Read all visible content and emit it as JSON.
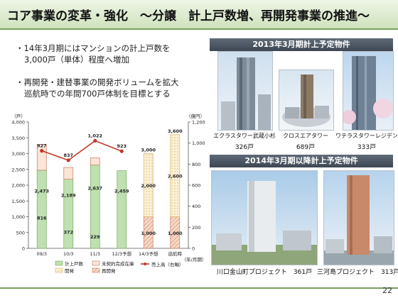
{
  "title": "コア事業の変革・強化　～分譲　計上戸数増、再開発事業の推進～",
  "bullets": [
    {
      "mark": "・",
      "lines": [
        "14年3月期にはマンションの計上戸数を",
        "3,000戸（単体）程度へ増加"
      ]
    },
    {
      "mark": "・",
      "lines": [
        "再開発・建替事業の開発ボリュームを拡大",
        "巡航時での年間700戸体制を目標とする"
      ]
    }
  ],
  "section_2013": {
    "header": "2013年3月期計上予定物件",
    "items": [
      {
        "name": "エクラスタワー武蔵小杉",
        "units": "326戸"
      },
      {
        "name": "クロスエアタワー",
        "units": "689戸"
      },
      {
        "name": "ワテラスタワーレジデンス",
        "units": "333戸"
      }
    ]
  },
  "section_2014": {
    "header": "2014年3月期以降計上予定物件",
    "items": [
      {
        "caption": "川口金山町プロジェクト　361戸"
      },
      {
        "caption": "三河島プロジェクト　313戸"
      }
    ]
  },
  "page_number": "22",
  "chart_data": {
    "type": "bar",
    "categories": [
      "09/3",
      "10/3",
      "11/3",
      "12/3予想",
      "14/3予想",
      "巡航時"
    ],
    "left_axis": {
      "label": "（戸）",
      "ticks": [
        "0",
        "500",
        "1,000",
        "1,500",
        "2,000",
        "2,500",
        "3,000",
        "3,500",
        "4,000"
      ],
      "ylim": [
        0,
        4000
      ]
    },
    "right_axis": {
      "label": "（億円）",
      "ticks": [
        "0",
        "200",
        "400",
        "600",
        "800",
        "1,000",
        "1,200"
      ],
      "ylim": [
        0,
        1200
      ]
    },
    "xlabel": "（年/月期）",
    "series": [
      {
        "name": "計上戸数",
        "kind": "bar-stack-bottom",
        "color": "#bfe0b0",
        "border": "#7aab63",
        "values": [
          2473,
          2189,
          2637,
          2459,
          null,
          null
        ]
      },
      {
        "name": "未契約完成在庫",
        "kind": "bar-stack-top",
        "color": "#fbe5d8",
        "border": "#c07a58",
        "values": [
          816,
          372,
          229,
          null,
          null,
          null
        ]
      },
      {
        "name": "開発",
        "kind": "bar-stack-bottom-dotted",
        "color": "#fbf1d8",
        "border": "#d9b565",
        "values": [
          null,
          null,
          null,
          null,
          2000,
          2600
        ]
      },
      {
        "name": "再開発",
        "kind": "bar-stack-top-hatched",
        "color": "#f7d8c8",
        "border": "#c67b5e",
        "values": [
          null,
          null,
          null,
          null,
          1000,
          1000
        ]
      },
      {
        "name": "売上高（右軸）",
        "kind": "line",
        "color": "#c0392b",
        "values": [
          927,
          837,
          1022,
          923,
          null,
          null
        ]
      }
    ],
    "bar_labels": [
      {
        "category": "09/3",
        "texts": [
          "2,473",
          "816"
        ]
      },
      {
        "category": "10/3",
        "texts": [
          "2,189",
          "372"
        ]
      },
      {
        "category": "11/3",
        "texts": [
          "2,637",
          "229"
        ]
      },
      {
        "category": "12/3予想",
        "texts": [
          "2,459"
        ]
      },
      {
        "category": "14/3予想",
        "texts": [
          "3,000",
          "2,000",
          "1,000"
        ]
      },
      {
        "category": "巡航時",
        "texts": [
          "3,600",
          "2,600",
          "1,000"
        ]
      }
    ],
    "line_labels": [
      "927",
      "837",
      "1,022",
      "923"
    ],
    "legend": [
      "計上戸数",
      "未契約完成在庫",
      "売上高（右軸）",
      "開発",
      "再開発"
    ],
    "legend_position": "bottom",
    "grid": false
  }
}
